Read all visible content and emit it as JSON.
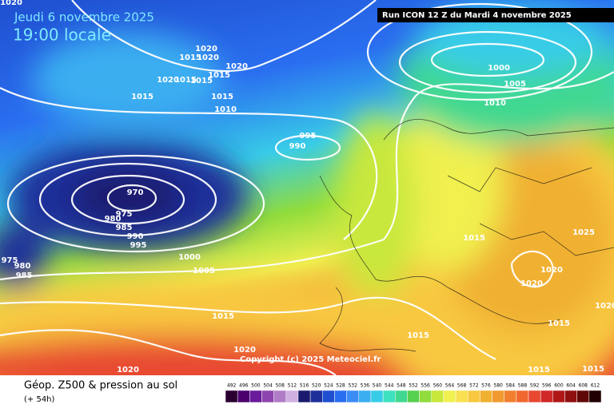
{
  "header": {
    "date": "Jeudi 6 novembre 2025",
    "time": "19:00 locale"
  },
  "run": "Run ICON 12 Z du Mardi 4 novembre 2025",
  "copyright": "Copyright (c) 2025 Meteociel.fr",
  "footer": {
    "title": "Géop. Z500 & pression au sol",
    "lead": "(+ 54h)"
  },
  "legend": {
    "values": [
      492,
      496,
      500,
      504,
      508,
      512,
      516,
      520,
      524,
      528,
      532,
      536,
      540,
      544,
      548,
      552,
      556,
      560,
      564,
      568,
      572,
      576,
      580,
      584,
      588,
      592,
      596,
      600,
      604,
      608,
      612
    ],
    "colors": [
      "#2a0030",
      "#4b006e",
      "#6a1b9a",
      "#8e44ad",
      "#b07cc6",
      "#d0b0e0",
      "#1a1a6e",
      "#1e2f9a",
      "#1f4fd0",
      "#2a6ef0",
      "#3c8cf5",
      "#3aaef0",
      "#38cce8",
      "#3ee0c0",
      "#40d890",
      "#58d050",
      "#90dc3c",
      "#c8e83c",
      "#f0f050",
      "#f8e050",
      "#f8c840",
      "#f0b030",
      "#f09a30",
      "#f08030",
      "#f06830",
      "#e84830",
      "#d02828",
      "#b01818",
      "#901010",
      "#600808",
      "#200000"
    ]
  },
  "isobars": {
    "labels": [
      1020,
      1020,
      1020,
      1015,
      1020,
      1020,
      1015,
      1015,
      1015,
      1015,
      1015,
      1010,
      1000,
      1005,
      1010,
      995,
      990,
      970,
      975,
      980,
      985,
      990,
      995,
      975,
      980,
      985,
      1000,
      1005,
      1015,
      1025,
      1020,
      1020,
      1015,
      1015,
      1015,
      1020,
      1020,
      1015,
      1015,
      1020
    ]
  }
}
